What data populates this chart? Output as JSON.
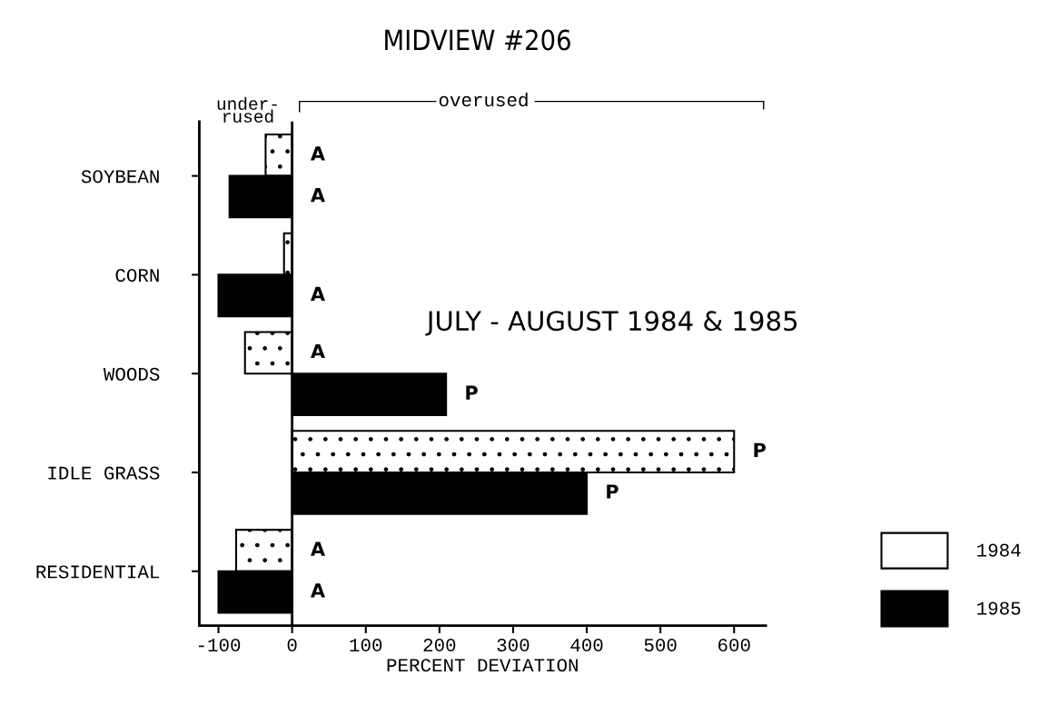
{
  "chart_data": {
    "type": "bar",
    "orientation": "horizontal",
    "title": "MIDVIEW #206",
    "xlabel": "PERCENT DEVIATION",
    "categories": [
      "SOYBEAN",
      "CORN",
      "WOODS",
      "IDLE GRASS",
      "RESIDENTIAL"
    ],
    "series": [
      {
        "name": "1984",
        "color": "#ffffff",
        "values": [
          -36,
          -11,
          -64,
          600,
          -76
        ],
        "value_labels": [
          "A",
          null,
          "A",
          "P",
          "A"
        ]
      },
      {
        "name": "1985",
        "color": "#000000",
        "values": [
          -85,
          -100,
          209,
          400,
          -100
        ],
        "value_labels": [
          "A",
          "A",
          "P",
          "P",
          "A"
        ]
      }
    ],
    "xlim": [
      -126,
      643
    ],
    "xticks": [
      -100,
      0,
      100,
      200,
      300,
      400,
      500,
      600
    ],
    "annotations": [
      "under-\nrused",
      "overused",
      "JULY - AUGUST 1984 & 1985"
    ],
    "ref_lines": [
      {
        "axis": "x",
        "value": 0,
        "color": "#000000",
        "line_style": "solid"
      }
    ],
    "legend": "bottom right",
    "grid": false
  }
}
